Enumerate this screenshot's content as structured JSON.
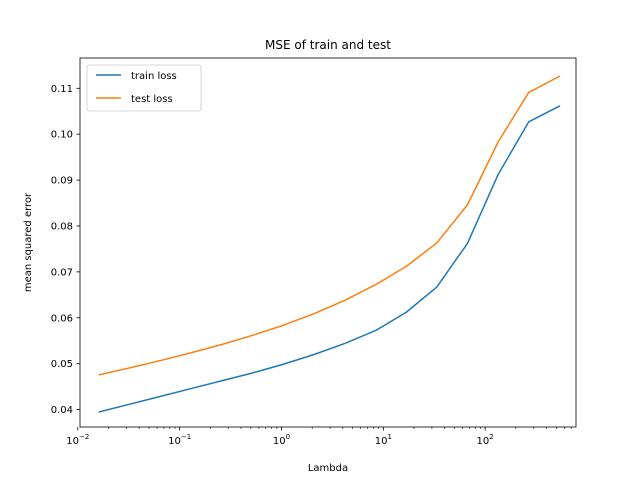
{
  "chart_data": {
    "type": "line",
    "title": "MSE of train and test",
    "xlabel": "Lambda",
    "ylabel": "mean squared error",
    "xscale": "log",
    "xlim": [
      0.0105,
      780
    ],
    "ylim": [
      0.0362,
      0.1166
    ],
    "xticks": [
      {
        "value": 0.01,
        "base": "10",
        "exp": "−2"
      },
      {
        "value": 0.1,
        "base": "10",
        "exp": "−1"
      },
      {
        "value": 1,
        "base": "10",
        "exp": "0"
      },
      {
        "value": 10,
        "base": "10",
        "exp": "1"
      },
      {
        "value": 100,
        "base": "10",
        "exp": "2"
      }
    ],
    "yticks": [
      0.04,
      0.05,
      0.06,
      0.07,
      0.08,
      0.09,
      0.1,
      0.11
    ],
    "ytick_labels": [
      "0.04",
      "0.05",
      "0.06",
      "0.07",
      "0.08",
      "0.09",
      "0.10",
      "0.11"
    ],
    "grid": false,
    "legend": "top-left",
    "x": [
      0.0163,
      0.0327,
      0.0654,
      0.131,
      0.262,
      0.524,
      1.05,
      2.09,
      4.19,
      8.38,
      16.8,
      33.5,
      67.0,
      134,
      268,
      536
    ],
    "series": [
      {
        "name": "train loss",
        "color": "#1f77b4",
        "values": [
          0.0395,
          0.0412,
          0.0429,
          0.0446,
          0.0463,
          0.048,
          0.0499,
          0.052,
          0.0544,
          0.0572,
          0.0612,
          0.0667,
          0.0762,
          0.0912,
          0.1027,
          0.1061
        ]
      },
      {
        "name": "test loss",
        "color": "#ff7f0e",
        "values": [
          0.0476,
          0.0491,
          0.0507,
          0.0524,
          0.0542,
          0.0562,
          0.0584,
          0.0609,
          0.0638,
          0.0672,
          0.0712,
          0.0763,
          0.0846,
          0.0983,
          0.1091,
          0.1126
        ]
      }
    ]
  }
}
